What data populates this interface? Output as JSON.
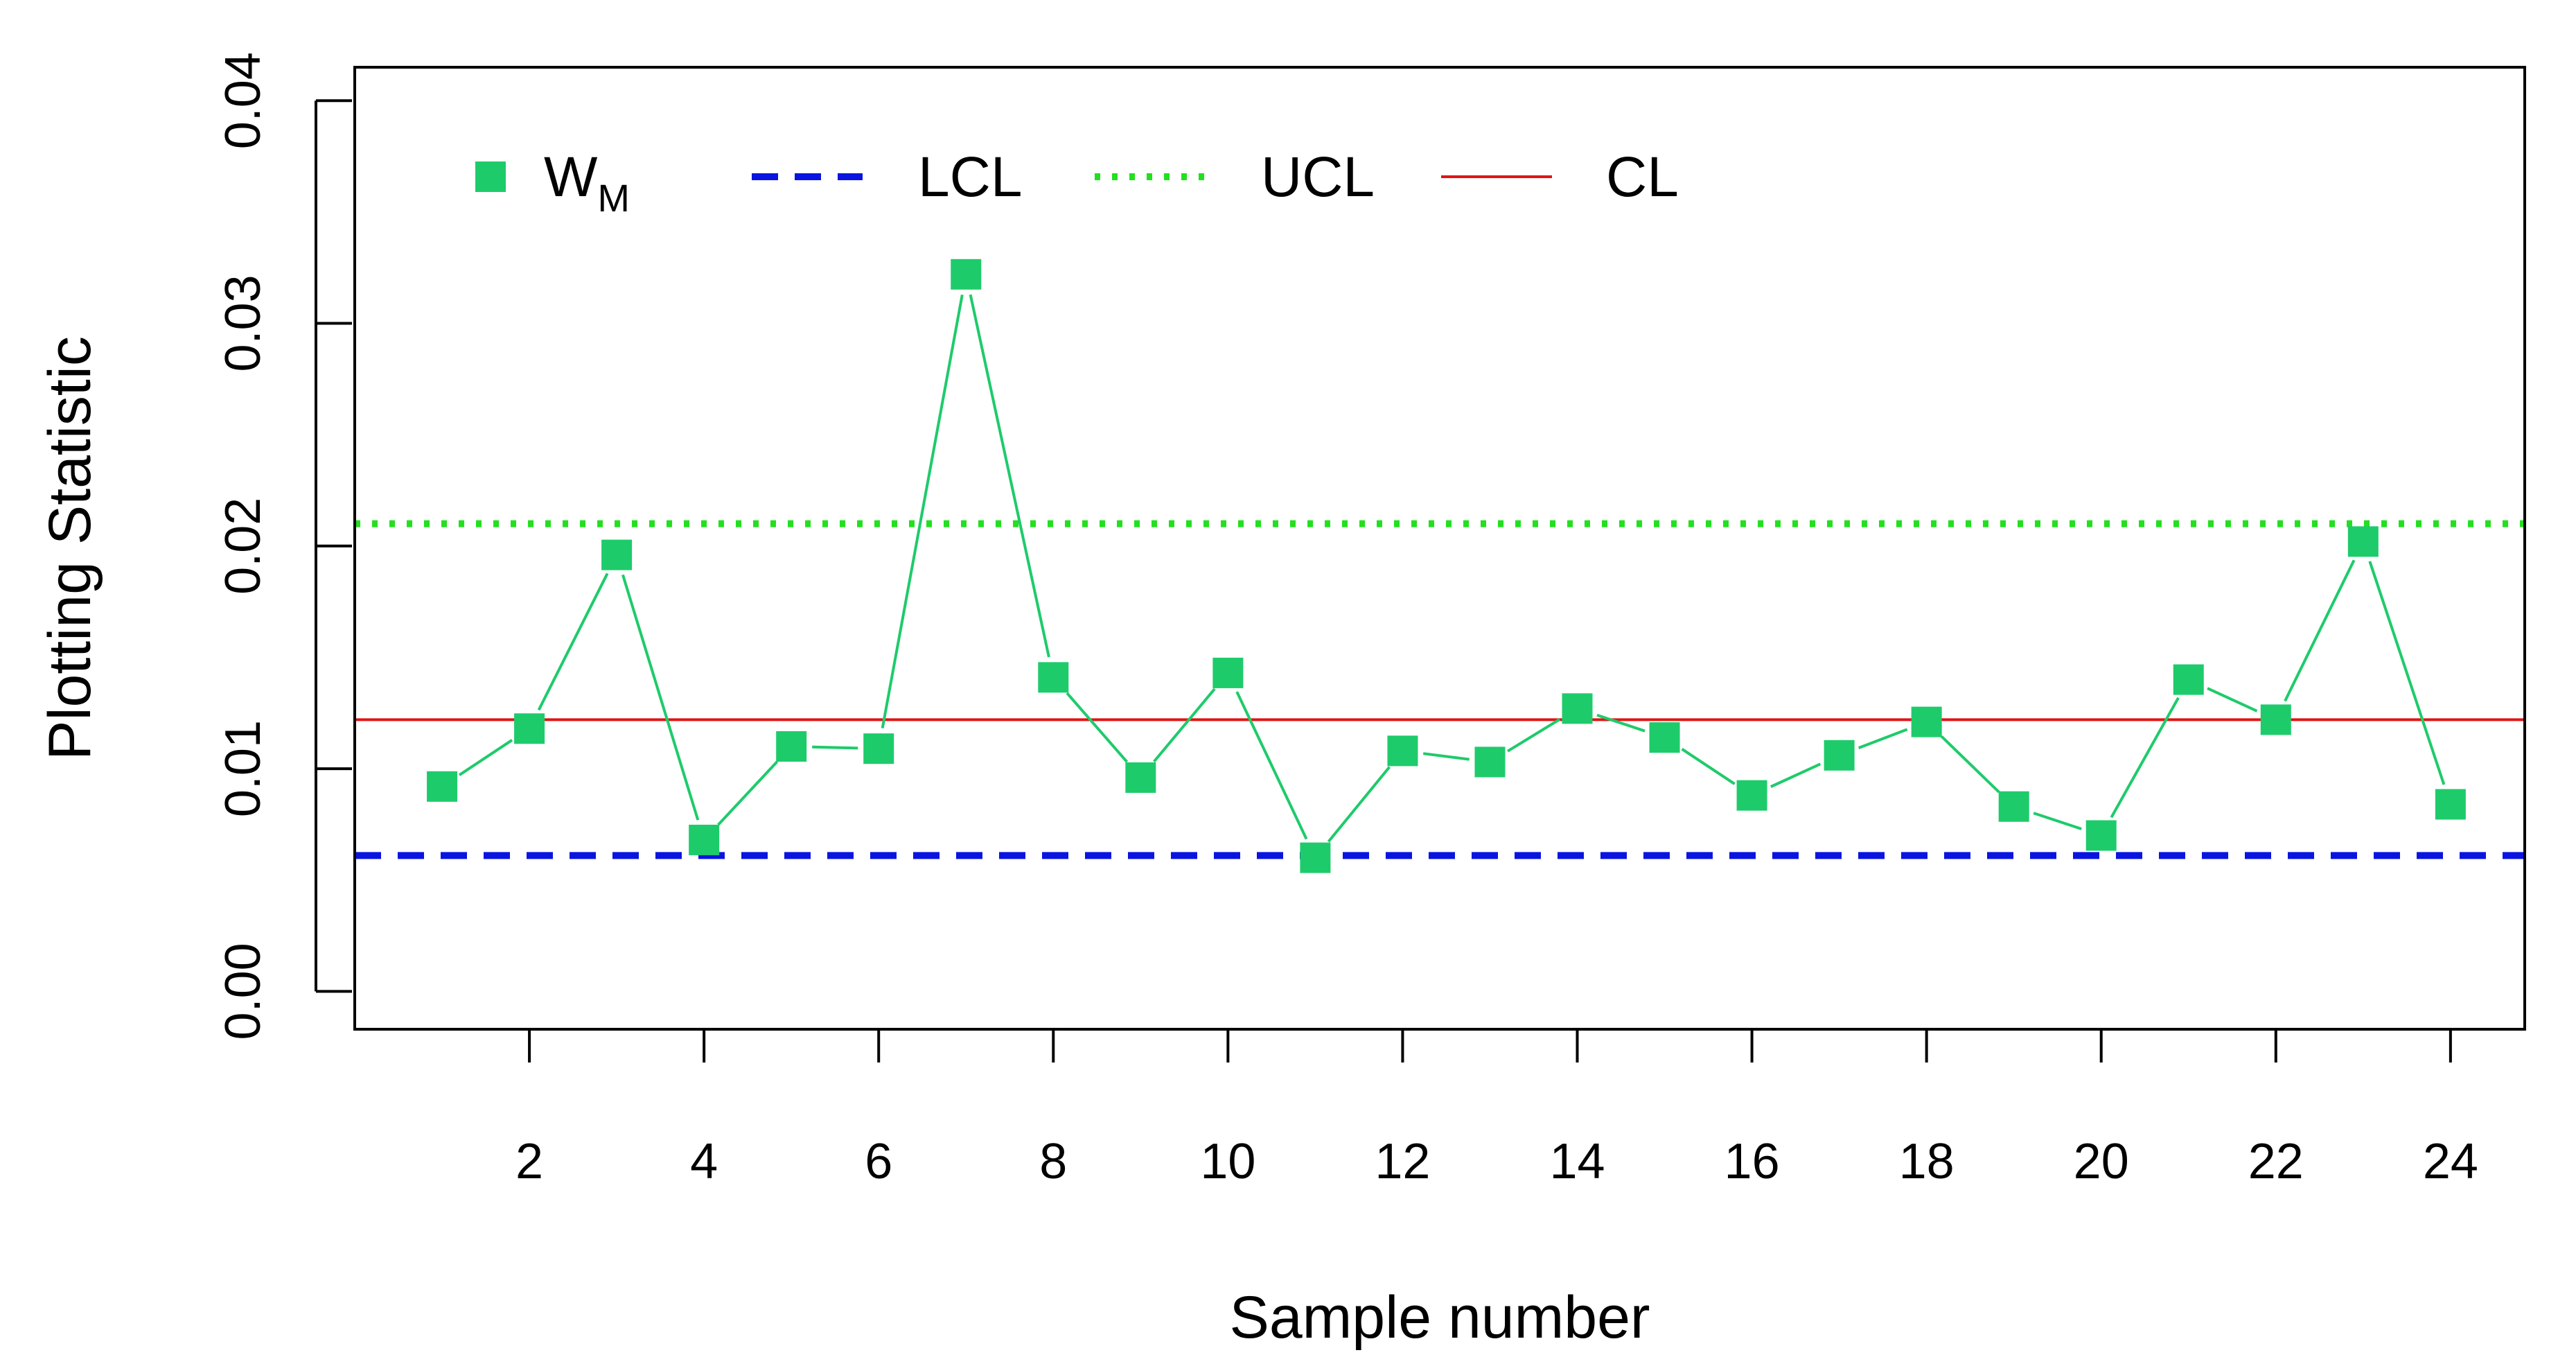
{
  "chart_data": {
    "type": "line",
    "title": "",
    "xlabel": "Sample number",
    "ylabel": "Plotting Statistic",
    "xlim": [
      0,
      24.85
    ],
    "ylim": [
      -0.0017,
      0.0415
    ],
    "x_ticks": [
      2,
      4,
      6,
      8,
      10,
      12,
      14,
      16,
      18,
      20,
      22,
      24
    ],
    "x_tick_labels": [
      "2",
      "4",
      "6",
      "8",
      "10",
      "12",
      "14",
      "16",
      "18",
      "20",
      "22",
      "24"
    ],
    "y_ticks": [
      0.0,
      0.01,
      0.02,
      0.03,
      0.04
    ],
    "y_tick_labels": [
      "0.00",
      "0.01",
      "0.02",
      "0.03",
      "0.04"
    ],
    "grid": false,
    "legend_position": "top-left",
    "legend": [
      {
        "key": "wm",
        "label": "W",
        "subscript": "M",
        "style": "green-square-points"
      },
      {
        "key": "lcl",
        "label": "LCL",
        "style": "blue-dashed-line"
      },
      {
        "key": "ucl",
        "label": "UCL",
        "style": "green-dotted-line"
      },
      {
        "key": "cl",
        "label": "CL",
        "style": "red-solid-line"
      }
    ],
    "series": [
      {
        "name": "WM",
        "x": [
          1,
          2,
          3,
          4,
          5,
          6,
          7,
          8,
          9,
          10,
          11,
          12,
          13,
          14,
          15,
          16,
          17,
          18,
          19,
          20,
          21,
          22,
          23,
          24
        ],
        "values": [
          0.0092,
          0.0118,
          0.0196,
          0.0068,
          0.011,
          0.0109,
          0.0322,
          0.0141,
          0.0096,
          0.0143,
          0.006,
          0.0108,
          0.0103,
          0.0127,
          0.0114,
          0.0088,
          0.0106,
          0.0121,
          0.0083,
          0.007,
          0.014,
          0.0122,
          0.0202,
          0.0084
        ],
        "color": "#1ecb6b"
      }
    ],
    "reference_lines": [
      {
        "name": "LCL",
        "value": 0.0061,
        "color": "#0a14e0",
        "style": "dashed"
      },
      {
        "name": "UCL",
        "value": 0.021,
        "color": "#22e01e",
        "style": "dotted"
      },
      {
        "name": "CL",
        "value": 0.0122,
        "color": "#e01414",
        "style": "solid"
      }
    ]
  }
}
